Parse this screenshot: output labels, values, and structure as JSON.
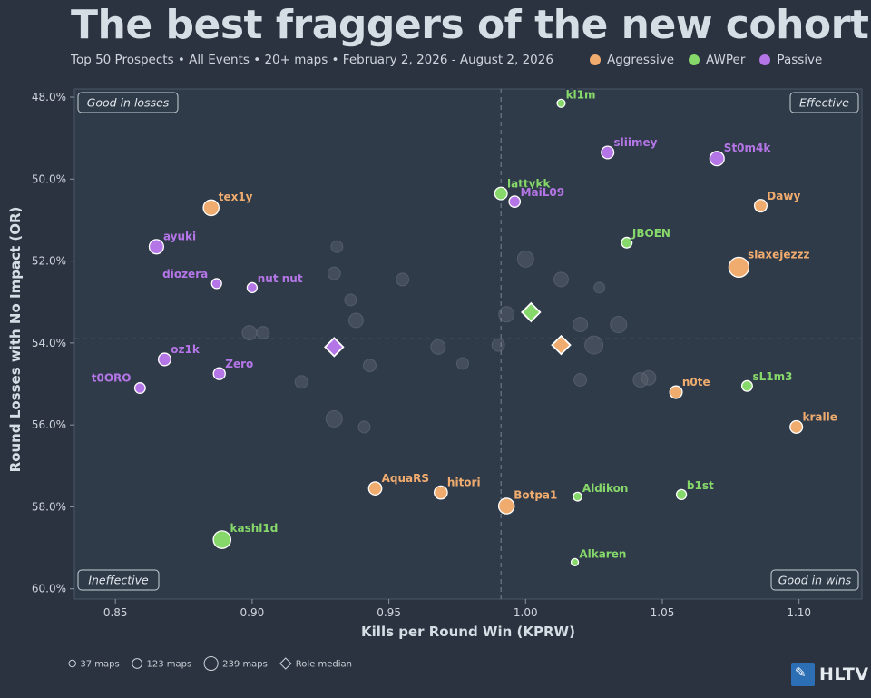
{
  "header": {
    "title": "The best fraggers of the new cohort",
    "subtitle": "Top 50 Prospects • All Events • 20+ maps • February 2, 2026 -  August 2, 2026"
  },
  "colors": {
    "Aggressive": "#f0ac6e",
    "AWPer": "#86d86b",
    "Passive": "#b476e6",
    "background": "#2b3340",
    "plot_background": "#303b4a"
  },
  "chart_data": {
    "type": "scatter",
    "xlabel": "Kills per Round Win (KPRW)",
    "ylabel": "Round Losses with No Impact (OR)",
    "xlim": [
      0.835,
      1.123
    ],
    "ylim": [
      47.8,
      60.25
    ],
    "y_inverted": true,
    "xticks": [
      "0.85",
      "0.90",
      "0.95",
      "1.00",
      "1.05",
      "1.10"
    ],
    "yticks": [
      "48.0%",
      "50.0%",
      "52.0%",
      "54.0%",
      "56.0%",
      "58.0%",
      "60.0%"
    ],
    "median_x": 0.991,
    "median_y": 53.9,
    "quadrant_labels": {
      "top_left": "Good in losses",
      "top_right": "Effective",
      "bottom_left": "Ineffective",
      "bottom_right": "Good in wins"
    },
    "groups": [
      "Aggressive",
      "AWPer",
      "Passive"
    ],
    "points": [
      {
        "name": "kl1m",
        "group": "AWPer",
        "x": 1.013,
        "y": 48.15,
        "maps": 50
      },
      {
        "name": "sliimey",
        "group": "Passive",
        "x": 1.03,
        "y": 49.35,
        "maps": 120
      },
      {
        "name": "St0m4k",
        "group": "Passive",
        "x": 1.07,
        "y": 49.5,
        "maps": 150
      },
      {
        "name": "lattykk",
        "group": "AWPer",
        "x": 0.991,
        "y": 50.35,
        "maps": 120
      },
      {
        "name": "MaiL09",
        "group": "Passive",
        "x": 0.996,
        "y": 50.55,
        "maps": 100
      },
      {
        "name": "Dawy",
        "group": "Aggressive",
        "x": 1.086,
        "y": 50.65,
        "maps": 120
      },
      {
        "name": "tex1y",
        "group": "Aggressive",
        "x": 0.885,
        "y": 50.7,
        "maps": 170
      },
      {
        "name": "JBOEN",
        "group": "AWPer",
        "x": 1.037,
        "y": 51.55,
        "maps": 90
      },
      {
        "name": "ayuki",
        "group": "Passive",
        "x": 0.865,
        "y": 51.65,
        "maps": 150
      },
      {
        "name": "slaxejezzz",
        "group": "Aggressive",
        "x": 1.078,
        "y": 52.15,
        "maps": 239
      },
      {
        "name": "diozera",
        "group": "Passive",
        "x": 0.887,
        "y": 52.55,
        "maps": 80
      },
      {
        "name": "nut nut",
        "group": "Passive",
        "x": 0.9,
        "y": 52.65,
        "maps": 80
      },
      {
        "name": "oz1k",
        "group": "Passive",
        "x": 0.868,
        "y": 54.4,
        "maps": 120
      },
      {
        "name": "t0ORO",
        "group": "Passive",
        "x": 0.859,
        "y": 55.1,
        "maps": 90
      },
      {
        "name": "Zero",
        "group": "Passive",
        "x": 0.888,
        "y": 54.75,
        "maps": 110
      },
      {
        "name": "n0te",
        "group": "Aggressive",
        "x": 1.055,
        "y": 55.2,
        "maps": 120
      },
      {
        "name": "sL1m3",
        "group": "AWPer",
        "x": 1.081,
        "y": 55.05,
        "maps": 90
      },
      {
        "name": "kralle",
        "group": "Aggressive",
        "x": 1.099,
        "y": 56.05,
        "maps": 120
      },
      {
        "name": "AquaRS",
        "group": "Aggressive",
        "x": 0.945,
        "y": 57.55,
        "maps": 130
      },
      {
        "name": "hitori",
        "group": "Aggressive",
        "x": 0.969,
        "y": 57.65,
        "maps": 130
      },
      {
        "name": "Botpa1",
        "group": "Aggressive",
        "x": 0.993,
        "y": 57.98,
        "maps": 170
      },
      {
        "name": "Aldikon",
        "group": "AWPer",
        "x": 1.019,
        "y": 57.75,
        "maps": 60
      },
      {
        "name": "b1st",
        "group": "AWPer",
        "x": 1.057,
        "y": 57.7,
        "maps": 80
      },
      {
        "name": "kashl1d",
        "group": "AWPer",
        "x": 0.889,
        "y": 58.8,
        "maps": 200
      },
      {
        "name": "Alkaren",
        "group": "AWPer",
        "x": 1.018,
        "y": 59.35,
        "maps": 37
      }
    ],
    "role_medians": [
      {
        "group": "AWPer",
        "x": 1.002,
        "y": 53.25
      },
      {
        "group": "Aggressive",
        "x": 1.013,
        "y": 54.05
      },
      {
        "group": "Passive",
        "x": 0.93,
        "y": 54.1
      }
    ],
    "size_legend": [
      {
        "label": "37 maps",
        "maps": 37
      },
      {
        "label": "123 maps",
        "maps": 123
      },
      {
        "label": "239 maps",
        "maps": 239
      }
    ],
    "shape_legend_label": "Role median"
  },
  "branding": {
    "logo_text": "HLTV"
  }
}
